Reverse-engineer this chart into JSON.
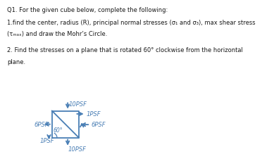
{
  "title_line1": "Q1. For the given cube below, complete the following:",
  "title_line2": "1.find the center, radius (R), principal normal stresses (σ₁ and σ₃), max shear stress",
  "title_line3": "(τₘₐₓ) and draw the Mohr’s Circle.",
  "title_line5": "2. Find the stresses on a plane that is rotated 60° clockwise from the horizontal",
  "title_line6": "plane.",
  "blue": "#4a7fb5",
  "black": "#1a1a1a",
  "bg_color": "#ffffff",
  "label_10psf_top": "10PSF",
  "label_1psf_h": "1PSF",
  "label_6psf_right": "6PSF",
  "label_6psf_left": "6PSF",
  "label_1psf_left": "1PSF",
  "label_10psf_bot": "10PSF",
  "angle_label": "60°"
}
